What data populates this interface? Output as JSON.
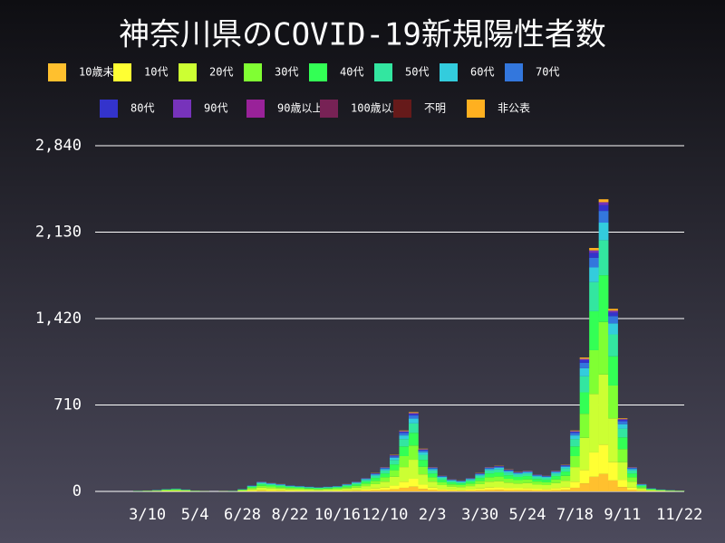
{
  "chart_data": {
    "type": "stacked_bar",
    "title": "神奈川県のCOVID-19新規陽性者数",
    "categories": [
      null,
      null,
      null,
      null,
      null,
      "3/10",
      null,
      null,
      null,
      null,
      "5/4",
      null,
      null,
      null,
      null,
      "6/28",
      null,
      null,
      null,
      null,
      "8/22",
      null,
      null,
      null,
      null,
      "10/16",
      null,
      null,
      null,
      null,
      "12/10",
      null,
      null,
      null,
      null,
      "2/3",
      null,
      null,
      null,
      null,
      "3/30",
      null,
      null,
      null,
      null,
      "5/24",
      null,
      null,
      null,
      null,
      "7/18",
      null,
      null,
      null,
      null,
      "9/11",
      null,
      null,
      null,
      null,
      null,
      "11/22"
    ],
    "series": [
      {
        "name": "10歳未満",
        "color": "#ffc02e",
        "values": [
          0,
          0,
          0,
          0,
          0,
          0,
          1,
          1,
          1,
          1,
          0,
          0,
          0,
          0,
          0,
          1,
          3,
          5,
          4,
          4,
          3,
          3,
          2,
          2,
          2,
          3,
          4,
          5,
          7,
          9,
          12,
          18,
          30,
          39,
          21,
          12,
          8,
          6,
          5,
          7,
          9,
          12,
          13,
          11,
          10,
          10,
          8,
          8,
          10,
          13,
          30,
          66,
          120,
          144,
          90,
          36,
          12,
          4,
          2,
          1,
          1,
          0
        ]
      },
      {
        "name": "10代",
        "color": "#ffff33",
        "values": [
          0,
          0,
          0,
          0,
          0,
          1,
          1,
          2,
          2,
          2,
          1,
          0,
          0,
          0,
          0,
          2,
          5,
          8,
          7,
          6,
          5,
          4,
          4,
          4,
          4,
          4,
          6,
          8,
          11,
          15,
          20,
          30,
          50,
          65,
          35,
          20,
          13,
          10,
          9,
          11,
          15,
          20,
          21,
          18,
          16,
          17,
          14,
          13,
          17,
          22,
          50,
          110,
          200,
          240,
          150,
          60,
          20,
          6,
          2,
          2,
          1,
          1
        ]
      },
      {
        "name": "20代",
        "color": "#ccff33",
        "values": [
          0,
          0,
          0,
          0,
          1,
          2,
          3,
          5,
          6,
          4,
          2,
          1,
          0,
          1,
          1,
          5,
          12,
          19,
          17,
          14,
          12,
          11,
          10,
          8,
          10,
          11,
          14,
          19,
          26,
          36,
          48,
          72,
          120,
          156,
          84,
          48,
          31,
          24,
          22,
          26,
          36,
          48,
          50,
          43,
          38,
          41,
          34,
          31,
          41,
          53,
          120,
          264,
          480,
          576,
          360,
          144,
          48,
          14,
          6,
          4,
          2,
          2
        ]
      },
      {
        "name": "30代",
        "color": "#80ff33",
        "values": [
          0,
          0,
          0,
          0,
          1,
          1,
          2,
          4,
          5,
          3,
          1,
          1,
          0,
          1,
          1,
          4,
          9,
          14,
          13,
          11,
          9,
          8,
          7,
          6,
          7,
          8,
          11,
          14,
          20,
          27,
          36,
          54,
          90,
          117,
          63,
          36,
          23,
          18,
          16,
          20,
          27,
          36,
          38,
          32,
          29,
          31,
          25,
          23,
          31,
          40,
          90,
          198,
          360,
          432,
          270,
          108,
          36,
          11,
          5,
          3,
          2,
          1
        ]
      },
      {
        "name": "40代",
        "color": "#33ff55",
        "values": [
          0,
          0,
          0,
          0,
          1,
          1,
          2,
          3,
          4,
          2,
          1,
          0,
          0,
          0,
          1,
          3,
          8,
          13,
          11,
          10,
          8,
          7,
          6,
          6,
          6,
          7,
          10,
          13,
          18,
          24,
          32,
          48,
          80,
          104,
          56,
          32,
          21,
          16,
          14,
          18,
          24,
          32,
          34,
          29,
          26,
          27,
          22,
          21,
          27,
          35,
          80,
          176,
          320,
          384,
          240,
          96,
          32,
          10,
          4,
          2,
          2,
          1
        ]
      },
      {
        "name": "50代",
        "color": "#33e6a0",
        "values": [
          0,
          0,
          0,
          0,
          1,
          1,
          1,
          2,
          3,
          2,
          1,
          0,
          0,
          0,
          1,
          2,
          6,
          10,
          8,
          7,
          6,
          5,
          5,
          4,
          5,
          5,
          7,
          10,
          13,
          18,
          24,
          36,
          60,
          78,
          42,
          24,
          16,
          12,
          11,
          13,
          18,
          24,
          25,
          22,
          19,
          20,
          17,
          16,
          20,
          26,
          60,
          132,
          240,
          288,
          180,
          72,
          24,
          7,
          3,
          2,
          1,
          1
        ]
      },
      {
        "name": "60代",
        "color": "#33ccdd",
        "values": [
          0,
          0,
          0,
          0,
          0,
          0,
          1,
          1,
          1,
          1,
          0,
          0,
          0,
          0,
          0,
          1,
          3,
          5,
          4,
          4,
          3,
          3,
          2,
          2,
          2,
          3,
          4,
          5,
          7,
          9,
          12,
          18,
          30,
          39,
          21,
          12,
          8,
          6,
          5,
          7,
          9,
          12,
          13,
          11,
          10,
          10,
          8,
          8,
          10,
          13,
          30,
          66,
          120,
          144,
          90,
          36,
          12,
          4,
          2,
          1,
          1,
          0
        ]
      },
      {
        "name": "70代",
        "color": "#3377dd",
        "values": [
          0,
          0,
          0,
          0,
          0,
          0,
          1,
          1,
          1,
          1,
          0,
          0,
          0,
          0,
          0,
          1,
          2,
          3,
          3,
          2,
          2,
          2,
          2,
          1,
          2,
          2,
          2,
          3,
          4,
          6,
          8,
          12,
          20,
          26,
          14,
          8,
          5,
          4,
          4,
          4,
          6,
          8,
          8,
          7,
          6,
          7,
          6,
          5,
          7,
          9,
          20,
          44,
          80,
          96,
          60,
          24,
          8,
          2,
          1,
          1,
          0,
          0
        ]
      },
      {
        "name": "80代",
        "color": "#3333cc",
        "values": [
          0,
          0,
          0,
          0,
          0,
          0,
          0,
          0,
          0,
          0,
          0,
          0,
          0,
          0,
          0,
          0,
          1,
          2,
          1,
          1,
          1,
          1,
          1,
          1,
          1,
          1,
          1,
          2,
          2,
          3,
          4,
          6,
          10,
          13,
          7,
          4,
          3,
          2,
          2,
          2,
          3,
          4,
          4,
          4,
          3,
          3,
          3,
          3,
          3,
          4,
          10,
          22,
          40,
          48,
          30,
          12,
          4,
          1,
          1,
          0,
          0,
          0
        ]
      },
      {
        "name": "90代",
        "color": "#7733bb",
        "values": [
          0,
          0,
          0,
          0,
          0,
          0,
          0,
          0,
          0,
          0,
          0,
          0,
          0,
          0,
          0,
          0,
          0,
          1,
          1,
          1,
          0,
          0,
          0,
          0,
          0,
          0,
          1,
          1,
          1,
          2,
          2,
          3,
          5,
          7,
          4,
          2,
          1,
          1,
          1,
          1,
          2,
          2,
          2,
          2,
          2,
          2,
          1,
          1,
          2,
          2,
          5,
          11,
          20,
          24,
          15,
          6,
          2,
          1,
          0,
          0,
          0,
          0
        ]
      },
      {
        "name": "90歳以上",
        "color": "#992299",
        "values": [
          0,
          0,
          0,
          0,
          0,
          0,
          0,
          0,
          0,
          0,
          0,
          0,
          0,
          0,
          0,
          0,
          0,
          0,
          0,
          0,
          0,
          0,
          0,
          0,
          0,
          0,
          0,
          0,
          0,
          0,
          0,
          0,
          0,
          0,
          0,
          0,
          0,
          0,
          0,
          0,
          0,
          0,
          0,
          0,
          0,
          0,
          0,
          0,
          0,
          0,
          0,
          0,
          0,
          0,
          0,
          0,
          0,
          0,
          0,
          0,
          0,
          0
        ]
      },
      {
        "name": "100歳以上",
        "color": "#772255",
        "values": [
          0,
          0,
          0,
          0,
          0,
          0,
          0,
          0,
          0,
          0,
          0,
          0,
          0,
          0,
          0,
          0,
          0,
          0,
          0,
          0,
          0,
          0,
          0,
          0,
          0,
          0,
          0,
          0,
          0,
          0,
          0,
          0,
          0,
          0,
          0,
          0,
          0,
          0,
          0,
          0,
          0,
          0,
          0,
          0,
          0,
          0,
          0,
          0,
          0,
          0,
          0,
          0,
          0,
          0,
          0,
          0,
          0,
          0,
          0,
          0,
          0,
          0
        ]
      },
      {
        "name": "不明",
        "color": "#661a1a",
        "values": [
          0,
          0,
          0,
          0,
          0,
          0,
          0,
          0,
          0,
          0,
          0,
          0,
          0,
          0,
          0,
          0,
          0,
          0,
          0,
          0,
          0,
          0,
          0,
          0,
          0,
          0,
          0,
          0,
          0,
          0,
          0,
          0,
          0,
          0,
          0,
          0,
          0,
          0,
          0,
          0,
          0,
          0,
          0,
          0,
          0,
          0,
          0,
          0,
          0,
          0,
          0,
          0,
          0,
          0,
          0,
          0,
          0,
          0,
          0,
          0,
          0,
          0
        ]
      },
      {
        "name": "非公表",
        "color": "#ffb020",
        "values": [
          0,
          0,
          0,
          0,
          0,
          0,
          0,
          0,
          0,
          0,
          0,
          0,
          0,
          0,
          0,
          0,
          0,
          1,
          1,
          1,
          0,
          0,
          0,
          0,
          0,
          0,
          1,
          1,
          1,
          2,
          2,
          3,
          5,
          7,
          4,
          2,
          1,
          1,
          1,
          1,
          2,
          2,
          2,
          2,
          2,
          2,
          1,
          1,
          2,
          2,
          5,
          11,
          20,
          24,
          15,
          6,
          2,
          1,
          0,
          0,
          0,
          0
        ]
      }
    ],
    "ylim": [
      0,
      2840
    ],
    "yticks": [
      0,
      710,
      {
        "value": 1420,
        "label": "1,420"
      },
      {
        "value": 2130,
        "label": "2,130"
      },
      {
        "value": 2840,
        "label": "2,840"
      }
    ],
    "grid": true
  }
}
